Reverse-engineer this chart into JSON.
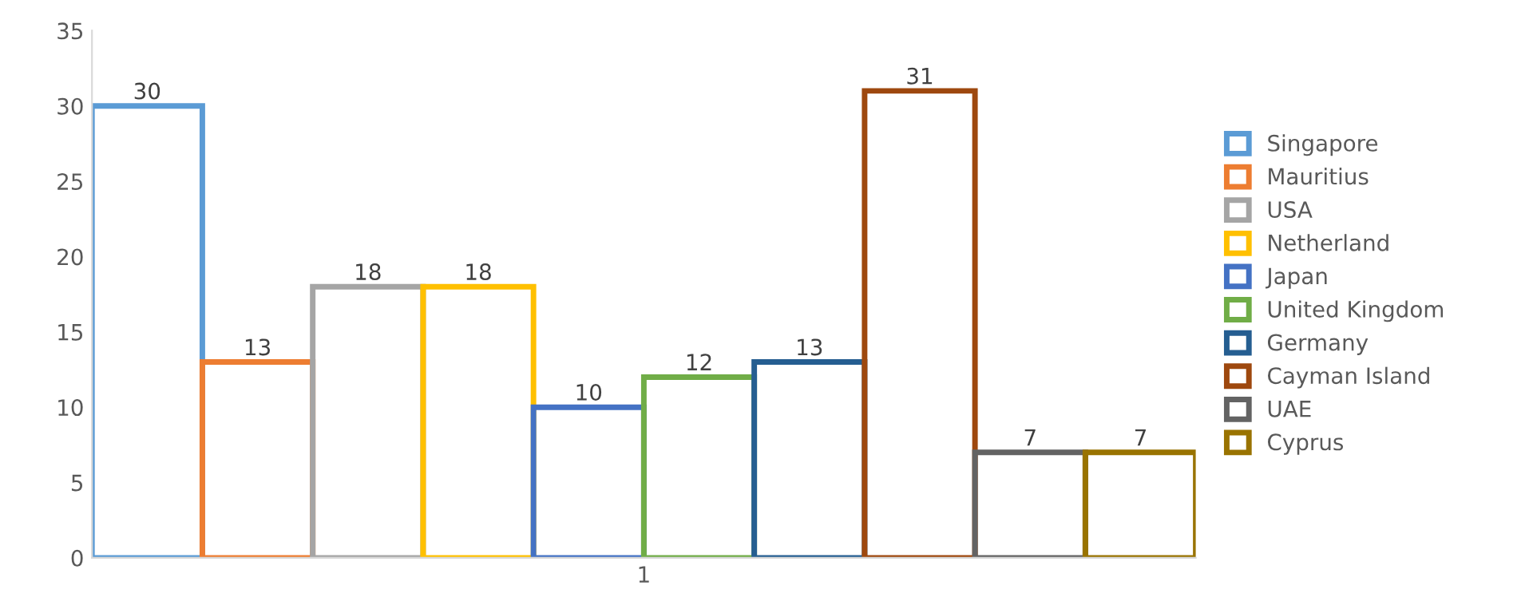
{
  "chart_data": {
    "type": "bar",
    "categories": [
      "1"
    ],
    "series": [
      {
        "name": "Singapore",
        "color": "#5b9bd5",
        "values": [
          30
        ]
      },
      {
        "name": "Mauritius",
        "color": "#ed7d31",
        "values": [
          13
        ]
      },
      {
        "name": "USA",
        "color": "#a5a5a5",
        "values": [
          18
        ]
      },
      {
        "name": "Netherland",
        "color": "#ffc000",
        "values": [
          18
        ]
      },
      {
        "name": "Japan",
        "color": "#4472c4",
        "values": [
          10
        ]
      },
      {
        "name": "United Kingdom",
        "color": "#70ad47",
        "values": [
          12
        ]
      },
      {
        "name": "Germany",
        "color": "#255e91",
        "values": [
          13
        ]
      },
      {
        "name": "Cayman Island",
        "color": "#9e480e",
        "values": [
          31
        ]
      },
      {
        "name": "UAE",
        "color": "#636363",
        "values": [
          7
        ]
      },
      {
        "name": "Cyprus",
        "color": "#997300",
        "values": [
          7
        ]
      }
    ],
    "ylim": [
      0,
      35
    ],
    "yticks": [
      0,
      5,
      10,
      15,
      20,
      25,
      30,
      35
    ],
    "data_labels": true,
    "grid": false,
    "legend": "right"
  }
}
